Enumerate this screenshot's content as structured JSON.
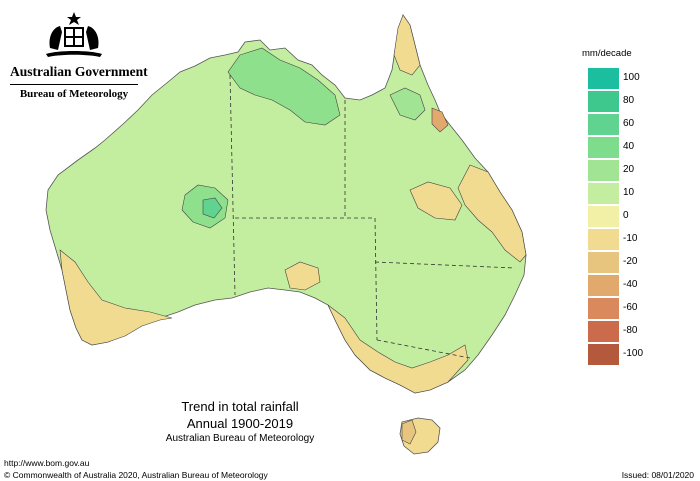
{
  "header": {
    "gov_name": "Australian Government",
    "agency_name": "Bureau of Meteorology"
  },
  "legend": {
    "unit": "mm/decade",
    "bins": [
      {
        "label": "100",
        "color": "#1bbf9f"
      },
      {
        "label": "80",
        "color": "#3fc88e"
      },
      {
        "label": "60",
        "color": "#5fd38f"
      },
      {
        "label": "40",
        "color": "#7edc8d"
      },
      {
        "label": "20",
        "color": "#a0e494"
      },
      {
        "label": "10",
        "color": "#c3eea0"
      },
      {
        "label": "0",
        "color": "#f2efa6"
      },
      {
        "label": "-10",
        "color": "#f0db90"
      },
      {
        "label": "-20",
        "color": "#e8c57e"
      },
      {
        "label": "-40",
        "color": "#e2a96c"
      },
      {
        "label": "-60",
        "color": "#d9895b"
      },
      {
        "label": "-80",
        "color": "#cc6b4b"
      },
      {
        "label": "-100",
        "color": "#b4593c"
      }
    ]
  },
  "title": {
    "line1": "Trend in total rainfall",
    "line2": "Annual 1900-2019",
    "line3": "Australian Bureau of Meteorology"
  },
  "footer": {
    "url": "http://www.bom.gov.au",
    "copyright": "© Commonwealth of Australia 2020, Australian Bureau of Meteorology",
    "issued": "Issued: 08/01/2020"
  }
}
